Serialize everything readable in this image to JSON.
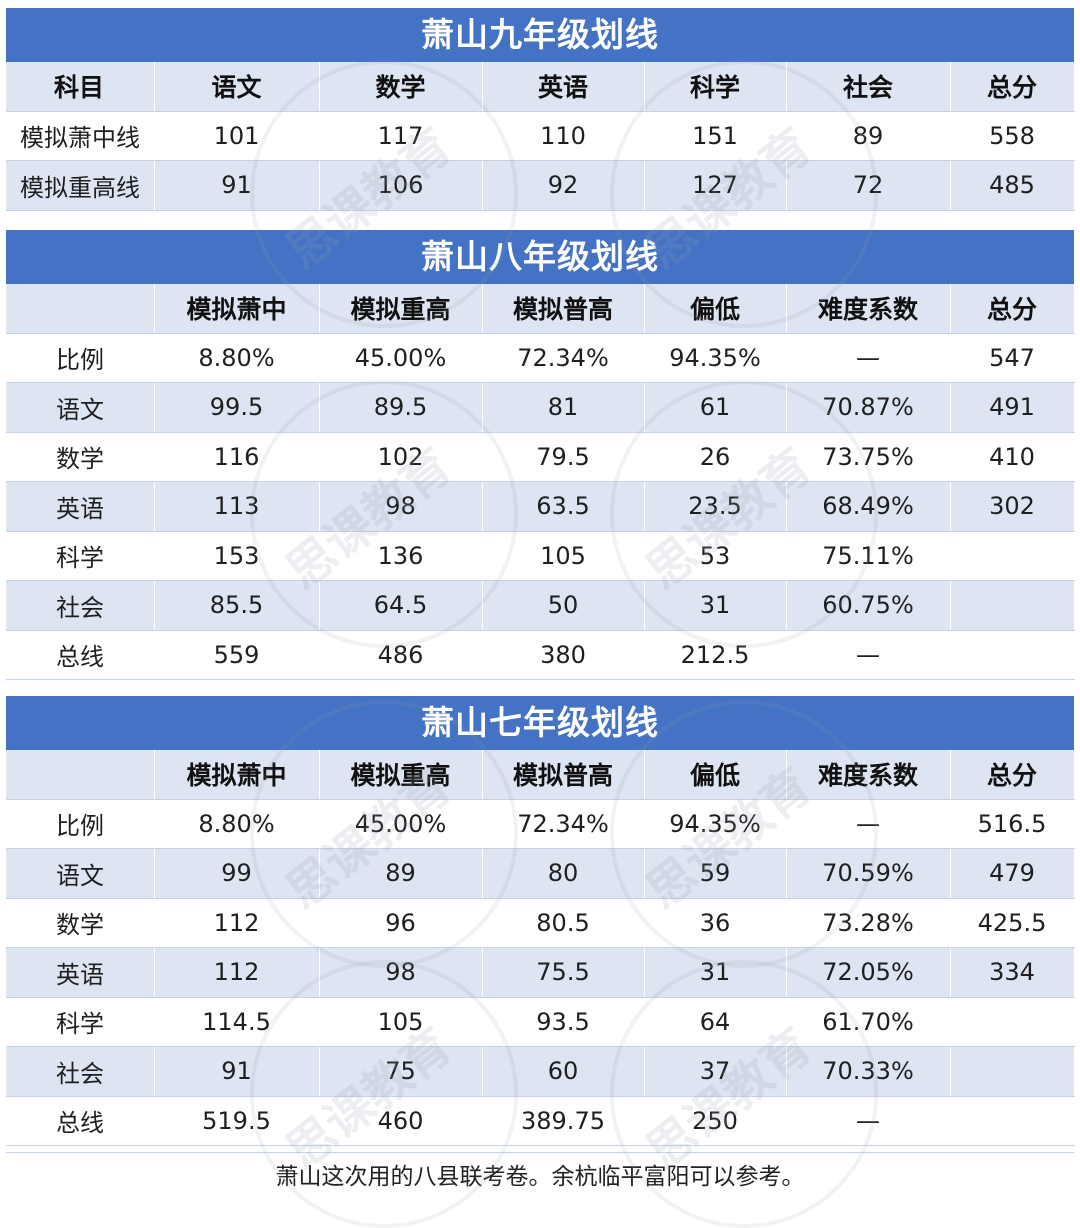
{
  "watermark": "思课教育",
  "nine": {
    "title": "萧山九年级划线",
    "headers": [
      "科目",
      "语文",
      "数学",
      "英语",
      "科学",
      "社会",
      "总分"
    ],
    "rows": [
      [
        "模拟萧中线",
        "101",
        "117",
        "110",
        "151",
        "89",
        "558"
      ],
      [
        "模拟重高线",
        "91",
        "106",
        "92",
        "127",
        "72",
        "485"
      ]
    ]
  },
  "eight": {
    "title": "萧山八年级划线",
    "headers": [
      "",
      "模拟萧中",
      "模拟重高",
      "模拟普高",
      "偏低",
      "难度系数",
      "总分"
    ],
    "rows": [
      [
        "比例",
        "8.80%",
        "45.00%",
        "72.34%",
        "94.35%",
        "—",
        "547"
      ],
      [
        "语文",
        "99.5",
        "89.5",
        "81",
        "61",
        "70.87%",
        "491"
      ],
      [
        "数学",
        "116",
        "102",
        "79.5",
        "26",
        "73.75%",
        "410"
      ],
      [
        "英语",
        "113",
        "98",
        "63.5",
        "23.5",
        "68.49%",
        "302"
      ],
      [
        "科学",
        "153",
        "136",
        "105",
        "53",
        "75.11%",
        ""
      ],
      [
        "社会",
        "85.5",
        "64.5",
        "50",
        "31",
        "60.75%",
        ""
      ],
      [
        "总线",
        "559",
        "486",
        "380",
        "212.5",
        "—",
        ""
      ]
    ]
  },
  "seven": {
    "title": "萧山七年级划线",
    "headers": [
      "",
      "模拟萧中",
      "模拟重高",
      "模拟普高",
      "偏低",
      "难度系数",
      "总分"
    ],
    "rows": [
      [
        "比例",
        "8.80%",
        "45.00%",
        "72.34%",
        "94.35%",
        "—",
        "516.5"
      ],
      [
        "语文",
        "99",
        "89",
        "80",
        "59",
        "70.59%",
        "479"
      ],
      [
        "数学",
        "112",
        "96",
        "80.5",
        "36",
        "73.28%",
        "425.5"
      ],
      [
        "英语",
        "112",
        "98",
        "75.5",
        "31",
        "72.05%",
        "334"
      ],
      [
        "科学",
        "114.5",
        "105",
        "93.5",
        "64",
        "61.70%",
        ""
      ],
      [
        "社会",
        "91",
        "75",
        "60",
        "37",
        "70.33%",
        ""
      ],
      [
        "总线",
        "519.5",
        "460",
        "389.75",
        "250",
        "—",
        ""
      ]
    ]
  },
  "footer": "萧山这次用的八县联考卷。余杭临平富阳可以参考。"
}
